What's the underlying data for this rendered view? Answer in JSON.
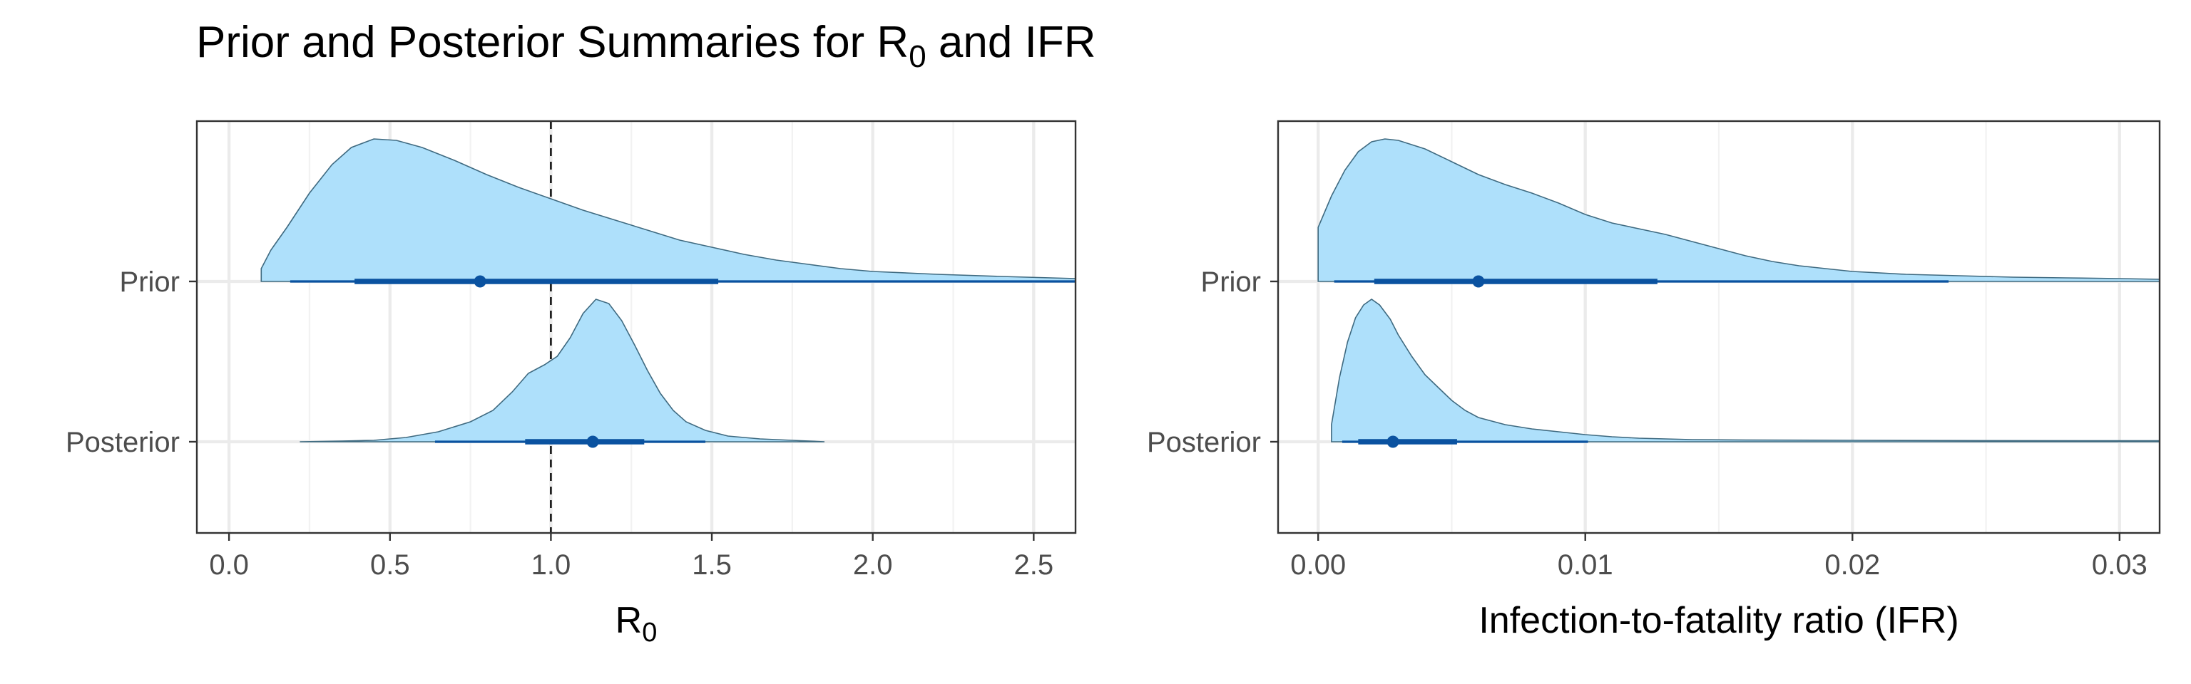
{
  "title": {
    "text": "Prior and Posterior Summaries for R",
    "subscript": "0",
    "suffix": " and IFR"
  },
  "colors": {
    "density_fill": "#aee0fb",
    "density_outline": "#3f6a80",
    "interval": "#0a52a0",
    "reference_line": "#000000"
  },
  "chart_data": [
    {
      "type": "halfeye",
      "panel": "left",
      "xlabel": "R",
      "xlabel_subscript": "0",
      "xlim": [
        -0.1,
        2.63
      ],
      "x_ticks": [
        0.0,
        0.5,
        1.0,
        1.5,
        2.0,
        2.5
      ],
      "x_tick_labels": [
        "0.0",
        "0.5",
        "1.0",
        "1.5",
        "2.0",
        "2.5"
      ],
      "x_minor_ticks": [
        0.25,
        0.75,
        1.25,
        1.75,
        2.25
      ],
      "reference_line_x": 1.0,
      "categories": [
        "Prior",
        "Posterior"
      ],
      "series": [
        {
          "name": "Prior",
          "point": 0.78,
          "interval_inner": [
            0.39,
            1.52
          ],
          "interval_outer": [
            0.19,
            2.63
          ],
          "density": [
            [
              0.1,
              0.09
            ],
            [
              0.13,
              0.22
            ],
            [
              0.18,
              0.38
            ],
            [
              0.25,
              0.62
            ],
            [
              0.32,
              0.82
            ],
            [
              0.38,
              0.94
            ],
            [
              0.45,
              1.0
            ],
            [
              0.52,
              0.99
            ],
            [
              0.6,
              0.94
            ],
            [
              0.7,
              0.85
            ],
            [
              0.8,
              0.75
            ],
            [
              0.9,
              0.66
            ],
            [
              1.0,
              0.58
            ],
            [
              1.1,
              0.5
            ],
            [
              1.2,
              0.43
            ],
            [
              1.3,
              0.36
            ],
            [
              1.4,
              0.29
            ],
            [
              1.5,
              0.24
            ],
            [
              1.6,
              0.19
            ],
            [
              1.7,
              0.15
            ],
            [
              1.8,
              0.12
            ],
            [
              1.9,
              0.09
            ],
            [
              2.0,
              0.07
            ],
            [
              2.2,
              0.05
            ],
            [
              2.4,
              0.035
            ],
            [
              2.63,
              0.02
            ]
          ]
        },
        {
          "name": "Posterior",
          "point": 1.13,
          "interval_inner": [
            0.92,
            1.29
          ],
          "interval_outer": [
            0.64,
            1.48
          ],
          "density": [
            [
              0.22,
              0.0
            ],
            [
              0.35,
              0.005
            ],
            [
              0.45,
              0.01
            ],
            [
              0.55,
              0.03
            ],
            [
              0.65,
              0.07
            ],
            [
              0.75,
              0.14
            ],
            [
              0.82,
              0.22
            ],
            [
              0.88,
              0.35
            ],
            [
              0.93,
              0.48
            ],
            [
              0.98,
              0.54
            ],
            [
              1.02,
              0.6
            ],
            [
              1.06,
              0.73
            ],
            [
              1.1,
              0.9
            ],
            [
              1.14,
              1.0
            ],
            [
              1.18,
              0.97
            ],
            [
              1.22,
              0.85
            ],
            [
              1.26,
              0.68
            ],
            [
              1.3,
              0.5
            ],
            [
              1.34,
              0.34
            ],
            [
              1.38,
              0.22
            ],
            [
              1.42,
              0.14
            ],
            [
              1.48,
              0.08
            ],
            [
              1.55,
              0.04
            ],
            [
              1.65,
              0.02
            ],
            [
              1.75,
              0.01
            ],
            [
              1.85,
              0.0
            ]
          ]
        }
      ]
    },
    {
      "type": "halfeye",
      "panel": "right",
      "xlabel": "Infection-to-fatality ratio (IFR)",
      "xlim": [
        -0.0015,
        0.0315
      ],
      "x_ticks": [
        0.0,
        0.01,
        0.02,
        0.03
      ],
      "x_tick_labels": [
        "0.00",
        "0.01",
        "0.02",
        "0.03"
      ],
      "x_minor_ticks": [
        0.005,
        0.015,
        0.025
      ],
      "categories": [
        "Prior",
        "Posterior"
      ],
      "series": [
        {
          "name": "Prior",
          "point": 0.006,
          "interval_inner": [
            0.0021,
            0.0127
          ],
          "interval_outer": [
            0.0006,
            0.0236
          ],
          "density": [
            [
              0.0,
              0.38
            ],
            [
              0.0005,
              0.6
            ],
            [
              0.001,
              0.78
            ],
            [
              0.0015,
              0.91
            ],
            [
              0.002,
              0.98
            ],
            [
              0.0025,
              1.0
            ],
            [
              0.003,
              0.99
            ],
            [
              0.004,
              0.93
            ],
            [
              0.005,
              0.84
            ],
            [
              0.006,
              0.75
            ],
            [
              0.007,
              0.68
            ],
            [
              0.008,
              0.62
            ],
            [
              0.009,
              0.55
            ],
            [
              0.01,
              0.47
            ],
            [
              0.011,
              0.41
            ],
            [
              0.012,
              0.37
            ],
            [
              0.013,
              0.33
            ],
            [
              0.014,
              0.28
            ],
            [
              0.015,
              0.23
            ],
            [
              0.016,
              0.18
            ],
            [
              0.017,
              0.14
            ],
            [
              0.018,
              0.11
            ],
            [
              0.019,
              0.09
            ],
            [
              0.02,
              0.07
            ],
            [
              0.022,
              0.05
            ],
            [
              0.024,
              0.04
            ],
            [
              0.026,
              0.03
            ],
            [
              0.028,
              0.025
            ],
            [
              0.03,
              0.02
            ],
            [
              0.0315,
              0.015
            ]
          ]
        },
        {
          "name": "Posterior",
          "point": 0.0028,
          "interval_inner": [
            0.0015,
            0.0052
          ],
          "interval_outer": [
            0.0009,
            0.0101
          ],
          "density": [
            [
              0.0005,
              0.12
            ],
            [
              0.0008,
              0.45
            ],
            [
              0.0011,
              0.7
            ],
            [
              0.0014,
              0.87
            ],
            [
              0.0017,
              0.96
            ],
            [
              0.002,
              1.0
            ],
            [
              0.0023,
              0.96
            ],
            [
              0.0027,
              0.86
            ],
            [
              0.003,
              0.75
            ],
            [
              0.0035,
              0.6
            ],
            [
              0.004,
              0.47
            ],
            [
              0.0045,
              0.38
            ],
            [
              0.005,
              0.29
            ],
            [
              0.0055,
              0.22
            ],
            [
              0.006,
              0.17
            ],
            [
              0.007,
              0.12
            ],
            [
              0.008,
              0.09
            ],
            [
              0.009,
              0.07
            ],
            [
              0.01,
              0.05
            ],
            [
              0.011,
              0.035
            ],
            [
              0.012,
              0.025
            ],
            [
              0.014,
              0.015
            ],
            [
              0.016,
              0.012
            ],
            [
              0.02,
              0.01
            ],
            [
              0.025,
              0.008
            ],
            [
              0.0315,
              0.007
            ]
          ]
        }
      ]
    }
  ]
}
